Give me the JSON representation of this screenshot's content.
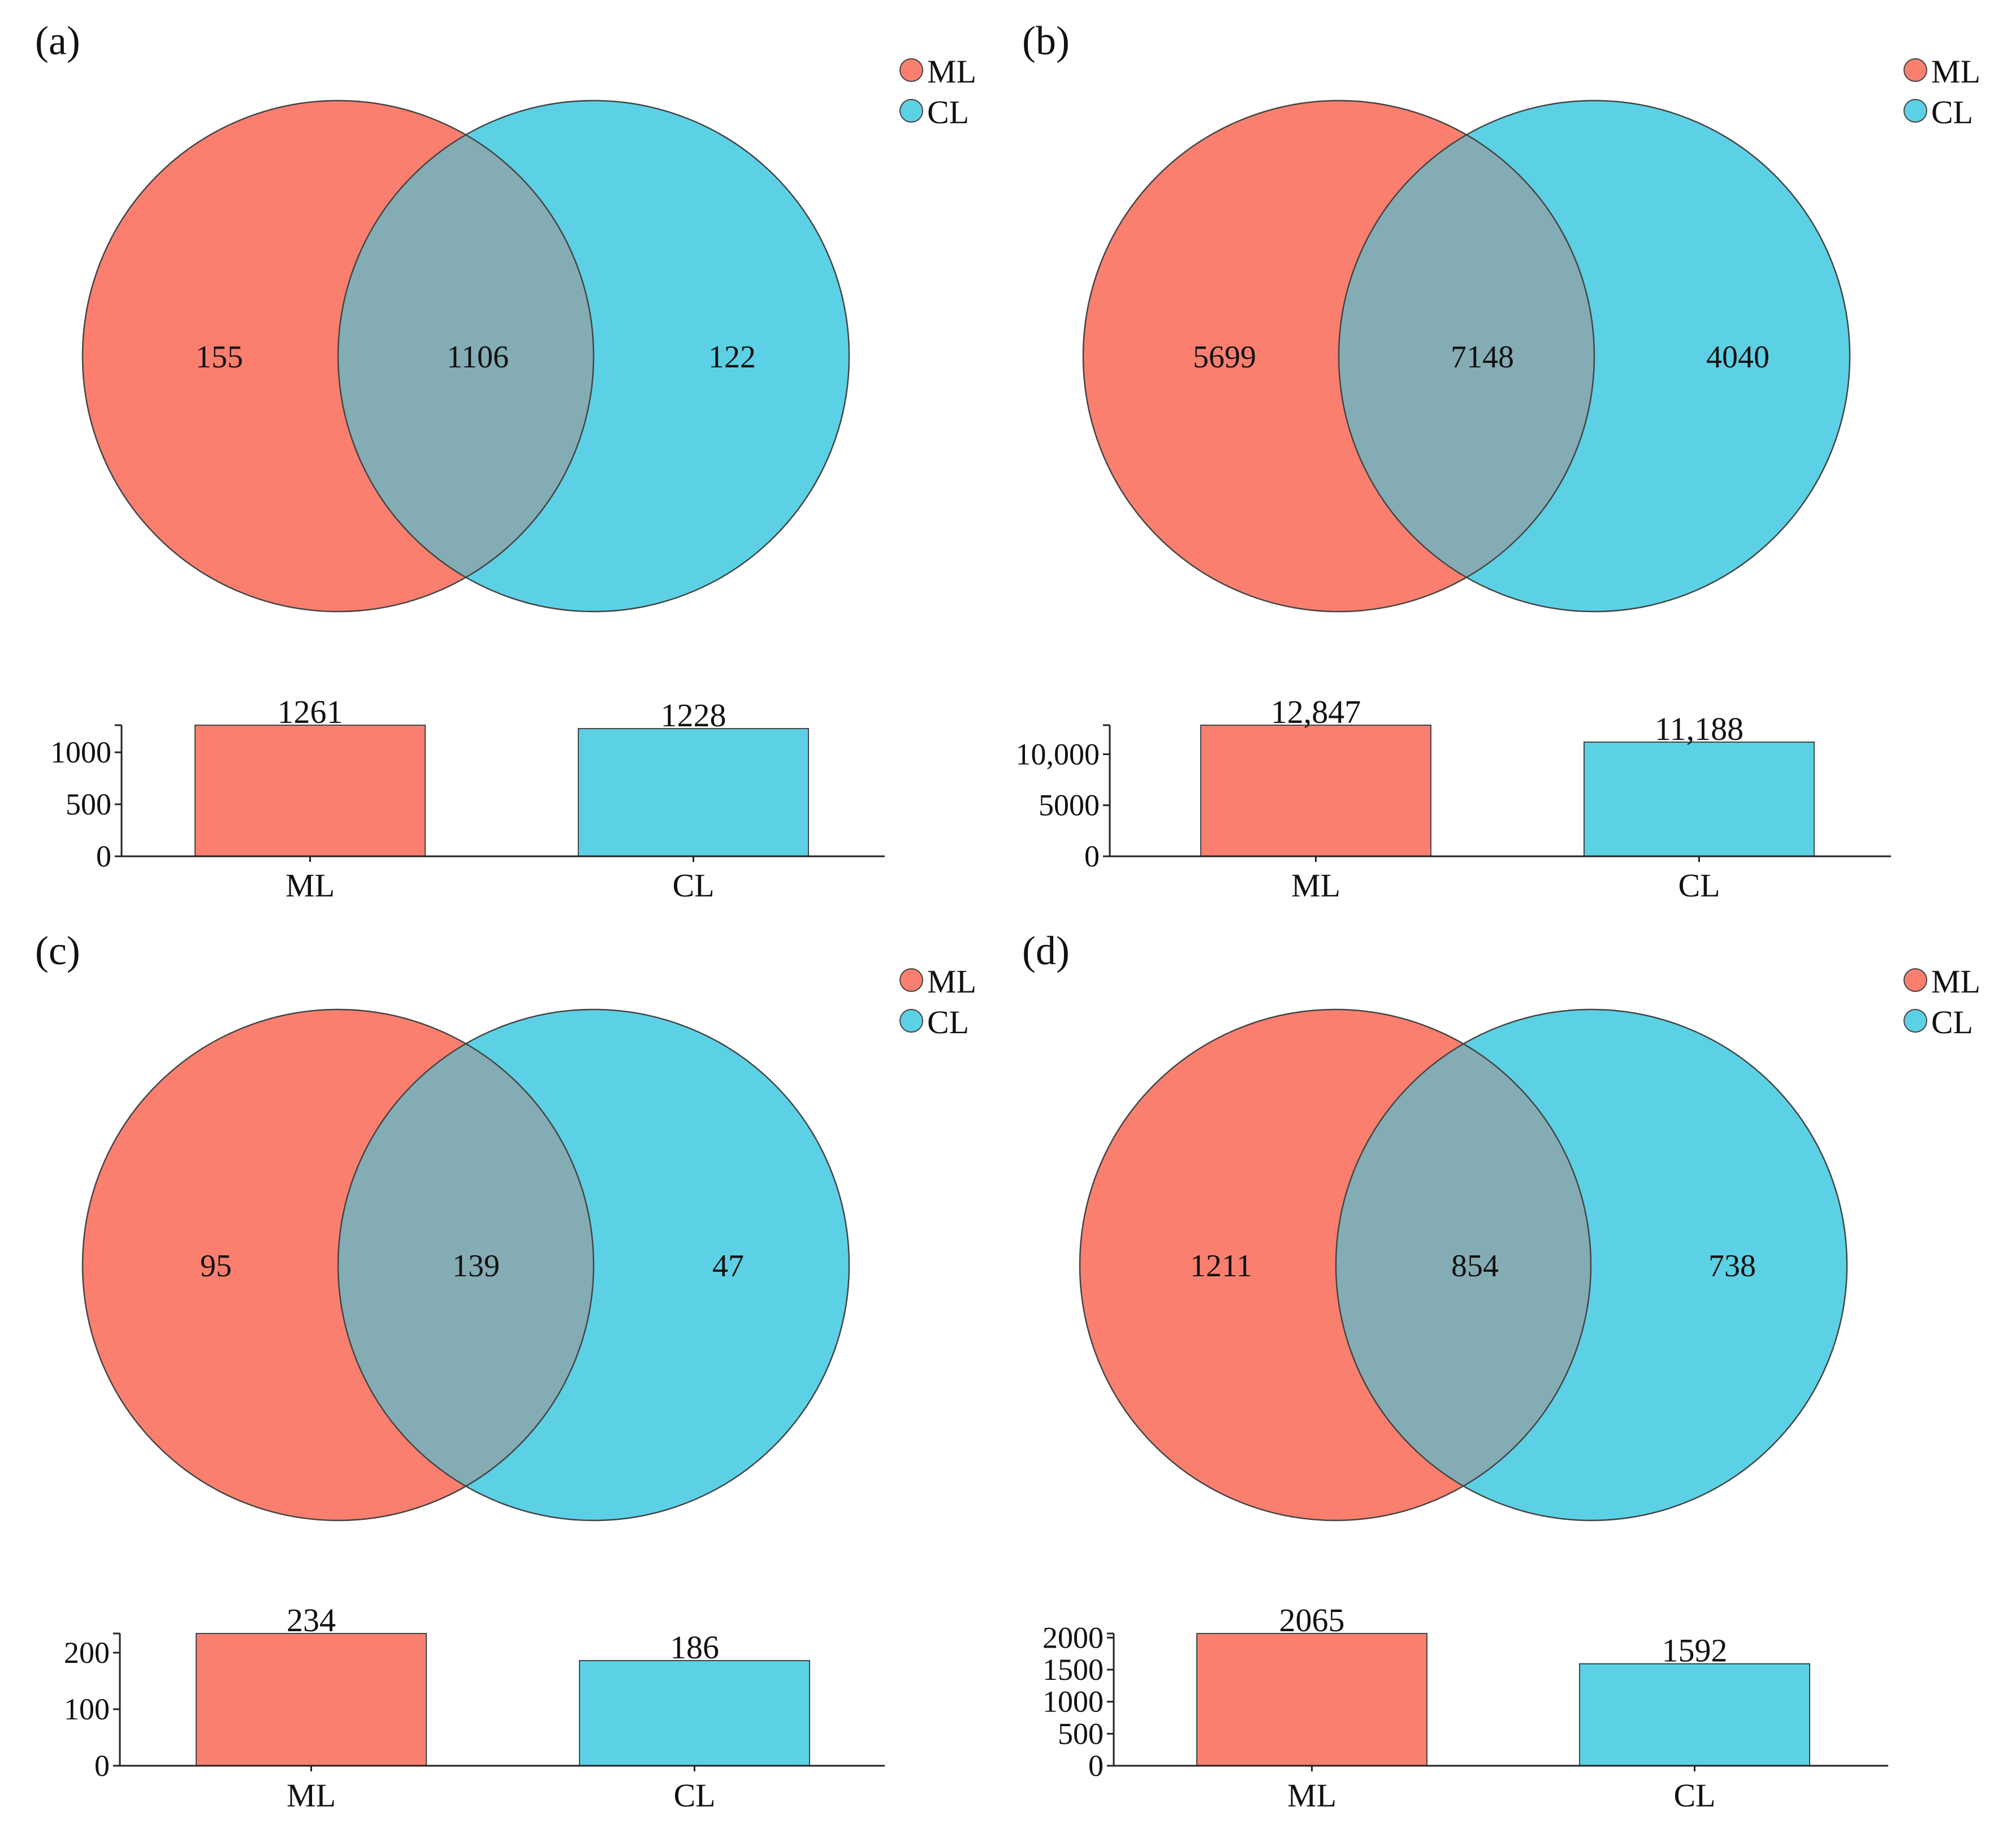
{
  "colors": {
    "ml": "#FA7F6F",
    "cl": "#5CD1E5",
    "overlap": "#84ACB4",
    "stroke": "#444444"
  },
  "chart_data": [
    {
      "type": "venn+bar",
      "panel": "(a)",
      "legend": [
        "ML",
        "CL"
      ],
      "venn": {
        "ml_only": "155",
        "overlap": "1106",
        "cl_only": "122"
      },
      "bar": {
        "categories": [
          "ML",
          "CL"
        ],
        "values": [
          1261,
          1228
        ],
        "value_labels": [
          "1261",
          "1228"
        ],
        "ylim": [
          0,
          1261
        ],
        "yticks": [
          0,
          500,
          1000
        ],
        "ytick_labels": [
          "0",
          "500",
          "1000"
        ]
      }
    },
    {
      "type": "venn+bar",
      "panel": "(b)",
      "legend": [
        "ML",
        "CL"
      ],
      "venn": {
        "ml_only": "5699",
        "overlap": "7148",
        "cl_only": "4040"
      },
      "bar": {
        "categories": [
          "ML",
          "CL"
        ],
        "values": [
          12847,
          11188
        ],
        "value_labels": [
          "12,847",
          "11,188"
        ],
        "ylim": [
          0,
          12847
        ],
        "yticks": [
          0,
          5000,
          10000
        ],
        "ytick_labels": [
          "0",
          "5000",
          "10,000"
        ]
      }
    },
    {
      "type": "venn+bar",
      "panel": "(c)",
      "legend": [
        "ML",
        "CL"
      ],
      "venn": {
        "ml_only": "95",
        "overlap": "139",
        "cl_only": "47"
      },
      "bar": {
        "categories": [
          "ML",
          "CL"
        ],
        "values": [
          234,
          186
        ],
        "value_labels": [
          "234",
          "186"
        ],
        "ylim": [
          0,
          234
        ],
        "yticks": [
          0,
          100,
          200
        ],
        "ytick_labels": [
          "0",
          "100",
          "200"
        ]
      }
    },
    {
      "type": "venn+bar",
      "panel": "(d)",
      "legend": [
        "ML",
        "CL"
      ],
      "venn": {
        "ml_only": "1211",
        "overlap": "854",
        "cl_only": "738"
      },
      "bar": {
        "categories": [
          "ML",
          "CL"
        ],
        "values": [
          2065,
          1592
        ],
        "value_labels": [
          "2065",
          "1592"
        ],
        "ylim": [
          0,
          2065
        ],
        "yticks": [
          0,
          500,
          1000,
          1500,
          2000
        ],
        "ytick_labels": [
          "0",
          "500",
          "1000",
          "1500",
          "2000"
        ]
      }
    }
  ]
}
